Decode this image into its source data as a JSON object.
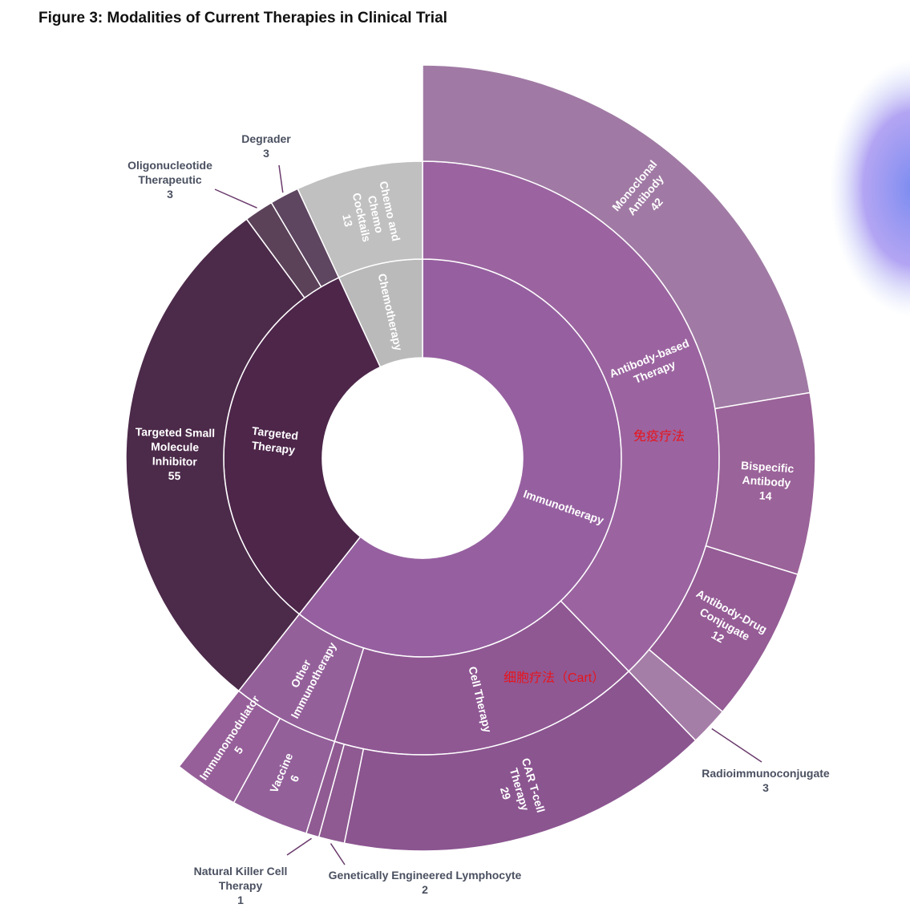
{
  "chart_data": {
    "type": "sunburst",
    "title": "Figure 3: Modalities of Current Therapies in Clinical Trial",
    "nodes": [
      {
        "name": "Immunotherapy",
        "color": "#9660a0",
        "children": [
          {
            "name": "Antibody-based Therapy",
            "color": "#9b64a0",
            "children": [
              {
                "name": "Monoclonal Antibody",
                "value": 42,
                "color": "#a07aa4"
              },
              {
                "name": "Bispecific Antibody",
                "value": 14,
                "color": "#9a6399"
              },
              {
                "name": "Antibody-Drug Conjugate",
                "value": 12,
                "color": "#955c96"
              },
              {
                "name": "Radioimmunoconjugate",
                "value": 3,
                "color": "#a57ea8"
              }
            ]
          },
          {
            "name": "Cell Therapy",
            "color": "#8f5893",
            "children": [
              {
                "name": "CAR T-cell Therapy",
                "value": 29,
                "color": "#8b5590"
              },
              {
                "name": "Genetically Engineered Lymphocyte",
                "value": 2,
                "color": "#8e5a91"
              },
              {
                "name": "Natural Killer Cell Therapy",
                "value": 1,
                "color": "#905b93"
              }
            ]
          },
          {
            "name": "Other Immunotherapy",
            "color": "#94609a",
            "children": [
              {
                "name": "Vaccine",
                "value": 6,
                "color": "#93609a"
              },
              {
                "name": "Immunomodulator",
                "value": 5,
                "color": "#965f99"
              }
            ]
          }
        ]
      },
      {
        "name": "Targeted Therapy",
        "color": "#4d264a",
        "children": [
          {
            "name": "Targeted Small Molecule Inhibitor",
            "value": 55,
            "color": "#4c2a4a"
          },
          {
            "name": "Oligonucleotide Therapeutic",
            "value": 3,
            "color": "#5b4259"
          },
          {
            "name": "Degrader",
            "value": 3,
            "color": "#5e4560"
          }
        ]
      },
      {
        "name": "Chemotherapy",
        "color": "#bababa",
        "children": [
          {
            "name": "Chemo and Chemo Cocktails",
            "value": 13,
            "color": "#c0c0c0"
          }
        ]
      }
    ],
    "annotations": [
      "免疫疗法",
      "细胞疗法（Cart）"
    ]
  }
}
